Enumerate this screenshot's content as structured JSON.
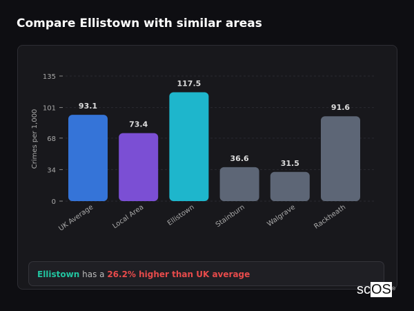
{
  "header": {
    "title": "Compare Ellistown with similar areas"
  },
  "chart_data": {
    "type": "bar",
    "categories": [
      "UK Average",
      "Local Area",
      "Ellistown",
      "Stainburn",
      "Walgrave",
      "Rackheath"
    ],
    "values": [
      93.1,
      73.4,
      117.5,
      36.6,
      31.5,
      91.6
    ],
    "value_labels": [
      "93.1",
      "73.4",
      "117.5",
      "36.6",
      "31.5",
      "91.6"
    ],
    "colors": [
      "#3574d8",
      "#7b4fd4",
      "#1eb6cc",
      "#5d6676",
      "#5d6676",
      "#5d6676"
    ],
    "ylabel": "Crimes per 1,000",
    "xlabel": "",
    "yticks": [
      0,
      34,
      68,
      101,
      135
    ],
    "ylim": [
      0,
      135
    ],
    "grid": true
  },
  "summary": {
    "area": "Ellistown",
    "middle": " has a ",
    "comparison": "26.2% higher than UK average"
  },
  "watermark": {
    "text": "scOS"
  }
}
